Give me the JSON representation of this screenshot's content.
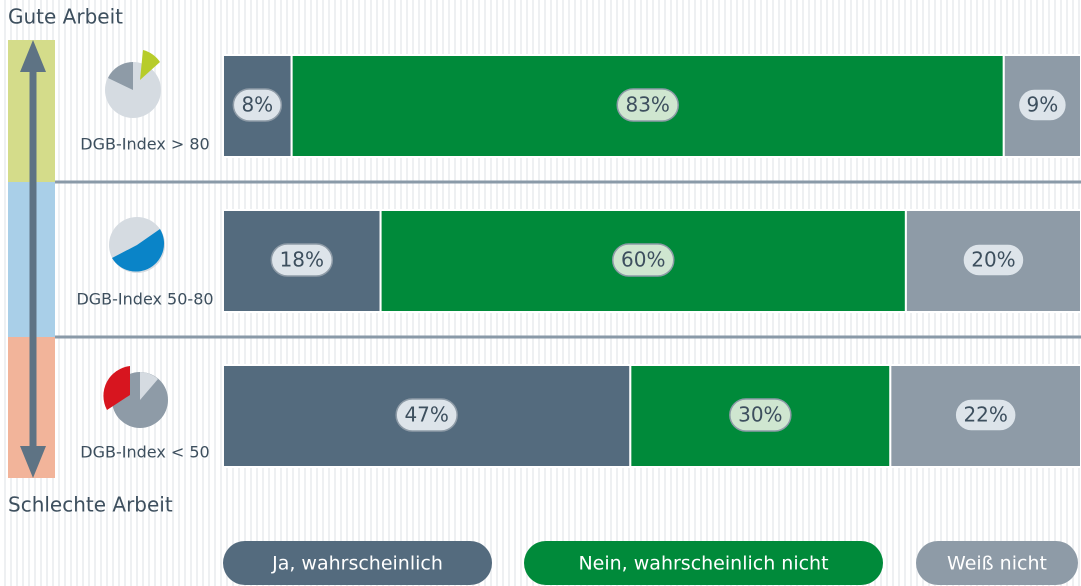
{
  "chart_data": {
    "type": "stacked-bar-horizontal",
    "annotations": [
      "Gute Arbeit",
      "Schlechte Arbeit"
    ],
    "categories": [
      "DGB-Index > 80",
      "DGB-Index 50-80",
      "DGB-Index < 50"
    ],
    "series": [
      {
        "name": "Ja, wahrscheinlich",
        "color": "#546b7e",
        "values": [
          8,
          18,
          47
        ],
        "value_labels": [
          "8%",
          "18%",
          "47%"
        ]
      },
      {
        "name": "Nein, wahrscheinlich nicht",
        "color": "#008a3a",
        "values": [
          83,
          60,
          30
        ],
        "value_labels": [
          "83%",
          "60%",
          "30%"
        ]
      },
      {
        "name": "Weiß nicht",
        "color": "#8e9ba7",
        "values": [
          9,
          20,
          22
        ],
        "value_labels": [
          "9%",
          "20%",
          "22%"
        ]
      }
    ]
  }
}
